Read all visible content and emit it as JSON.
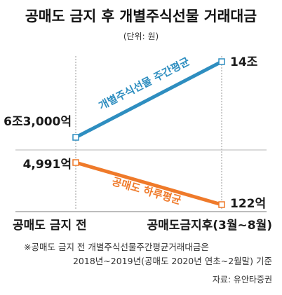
{
  "chart_data": {
    "type": "line",
    "title": "공매도 금지 후 개별주식선물 거래대금",
    "unit": "(단위: 원)",
    "categories": [
      "공매도 금지 전",
      "공매도금지후(3월~8월)"
    ],
    "series": [
      {
        "name": "개별주식선물 주간평균",
        "values": [
          6300000000000,
          14000000000000
        ],
        "value_labels": [
          "6조3,000억",
          "14조"
        ],
        "color": "#2e8ec0"
      },
      {
        "name": "공매도 하루평균",
        "values": [
          499100000000,
          12200000000
        ],
        "value_labels": [
          "4,991억",
          "122억"
        ],
        "color": "#ef7a2a"
      }
    ],
    "note_lines": [
      "※공매도 금지 전 개별주식선물주간평균거래대금은",
      "2018년~2019년(공매도 2020년 연초~2월말) 기준"
    ],
    "source": "자료: 유안타증권"
  }
}
